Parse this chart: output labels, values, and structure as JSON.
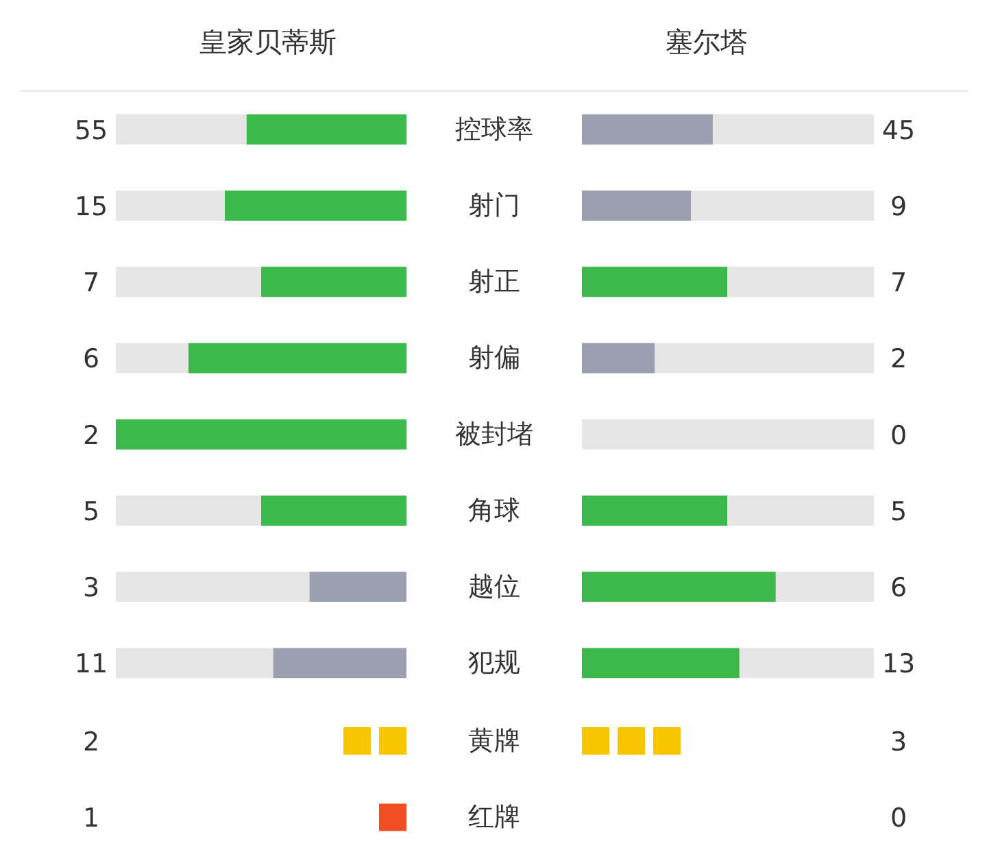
{
  "chart_data": [
    {
      "type": "other",
      "categories": [
        "控球率",
        "射门",
        "射正",
        "射偏",
        "被封堵",
        "角球",
        "越位",
        "犯规"
      ],
      "data_labels": true,
      "series": [
        {
          "name": "皇家贝蒂斯",
          "values": [
            55,
            15,
            7,
            6,
            2,
            5,
            3,
            11
          ],
          "colors": [
            "#3db94c",
            "#3db94c",
            "#3db94c",
            "#3db94c",
            "#3db94c",
            "#3db94c",
            "#9aa0b0",
            "#9aa0b0"
          ]
        },
        {
          "name": "塞尔塔",
          "values": [
            45,
            9,
            7,
            2,
            0,
            5,
            6,
            13
          ],
          "colors": [
            "#9aa0b0",
            "#9aa0b0",
            "#3db94c",
            "#9aa0b0",
            "#9aa0b0",
            "#3db94c",
            "#3db94c",
            "#3db94c"
          ]
        }
      ]
    },
    {
      "type": "other",
      "categories": [
        "黄牌",
        "红牌"
      ],
      "data_labels": true,
      "series": [
        {
          "values": [
            2,
            1
          ],
          "colors": [
            "#f7c600",
            "#f04e23"
          ]
        },
        {
          "values": [
            3,
            0
          ],
          "colors": [
            "#f7c600",
            "#f04e23"
          ]
        }
      ]
    }
  ]
}
